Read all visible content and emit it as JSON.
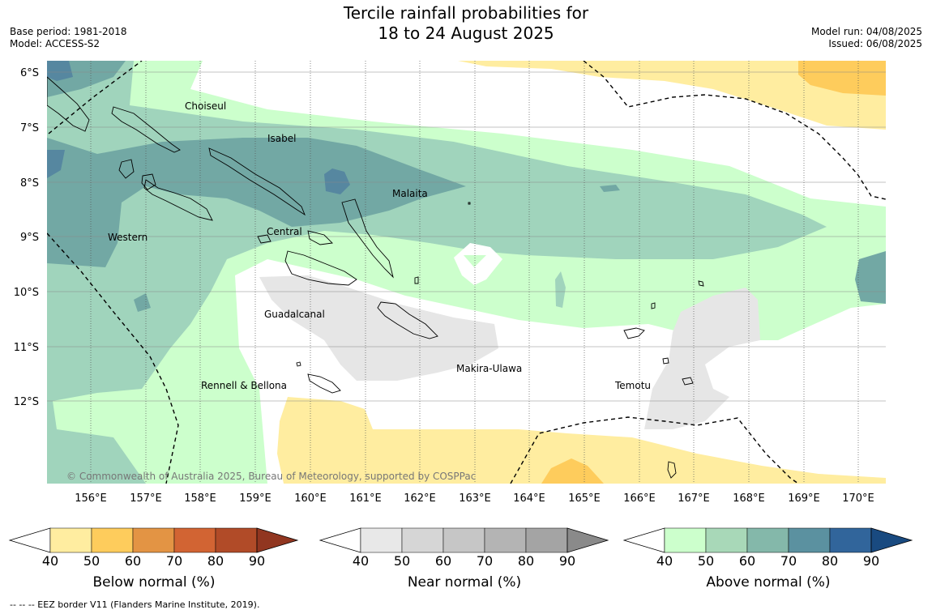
{
  "title": {
    "line1": "Tercile rainfall probabilities for",
    "line2": "18 to 24 August 2025"
  },
  "meta_left": {
    "base_period": "Base period: 1981-2018",
    "model": "Model: ACCESS-S2"
  },
  "meta_right": {
    "model_run": "Model run: 04/08/2025",
    "issued": "Issued: 06/08/2025"
  },
  "map": {
    "lat_labels": [
      "6°S",
      "7°S",
      "8°S",
      "9°S",
      "10°S",
      "11°S",
      "12°S"
    ],
    "lon_labels": [
      "156°E",
      "157°E",
      "158°E",
      "159°E",
      "160°E",
      "161°E",
      "162°E",
      "163°E",
      "164°E",
      "165°E",
      "166°E",
      "167°E",
      "168°E",
      "169°E",
      "170°E"
    ],
    "regions": [
      "Choiseul",
      "Isabel",
      "Malaita",
      "Western",
      "Central",
      "Guadalcanal",
      "Makira-Ulawa",
      "Rennell & Bellona",
      "Temotu"
    ],
    "copyright": "© Commonwealth of Australia 2025, Bureau of Meteorology, supported by COSPPac"
  },
  "colorbars": [
    {
      "label": "Below normal (%)",
      "ticks": [
        "40",
        "50",
        "60",
        "70",
        "80",
        "90"
      ],
      "colors": [
        "#ffeda0",
        "#fecc5c",
        "#e39444",
        "#d26433",
        "#b14b28",
        "#913620"
      ]
    },
    {
      "label": "Near normal (%)",
      "ticks": [
        "40",
        "50",
        "60",
        "70",
        "80",
        "90"
      ],
      "colors": [
        "#e8e8e8",
        "#d6d6d6",
        "#c6c6c6",
        "#b4b4b4",
        "#a4a4a4",
        "#8a8a8a"
      ]
    },
    {
      "label": "Above normal (%)",
      "ticks": [
        "40",
        "50",
        "60",
        "70",
        "80",
        "90"
      ],
      "colors": [
        "#ccffcc",
        "#a8d8b8",
        "#84b8aa",
        "#5b91a0",
        "#31659b",
        "#194a80"
      ]
    }
  ],
  "footnote": "-- -- -- EEZ border V11 (Flanders Marine Institute, 2019).",
  "colors": {
    "above_40": "#ccffcc",
    "above_50": "#a0d4bc",
    "above_60": "#72a8a4",
    "above_70": "#5687a0",
    "below_40": "#ffeda0",
    "below_50": "#fecc5c",
    "near_40": "#e6e6e6"
  }
}
